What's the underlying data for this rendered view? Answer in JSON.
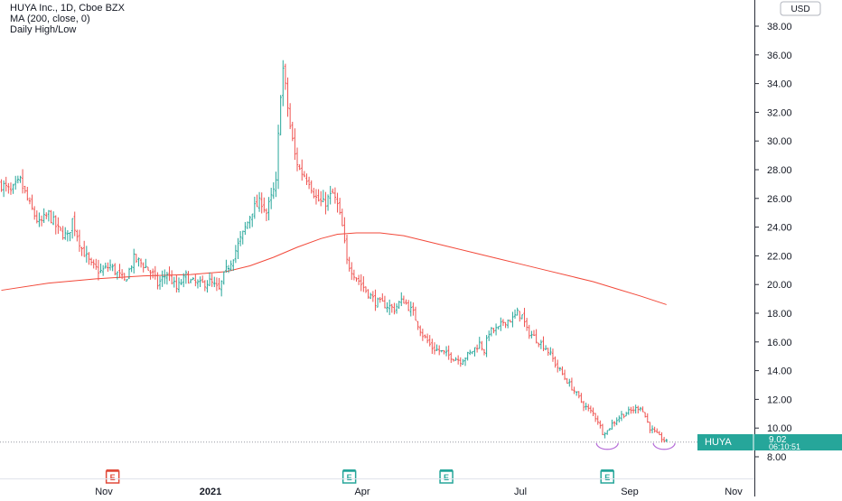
{
  "header": {
    "symbol_line": "HUYA Inc., 1D, Cboe BZX",
    "indicator_line": "MA (200, close, 0)",
    "study_line": "Daily High/Low"
  },
  "currency_button": "USD",
  "price_tag": {
    "symbol": "HUYA",
    "price": "9.02",
    "countdown": "06:10:51",
    "value": 9.02
  },
  "colors": {
    "up": "#26a69a",
    "down": "#ef5350",
    "ma": "#f2493a",
    "earnings_red": "#e04a3a",
    "earnings_green": "#26a69a",
    "marker": "#b56bd8"
  },
  "chart_data": {
    "type": "ohlc",
    "y_axis": {
      "min": 8,
      "max": 38,
      "ticks": [
        "38.00",
        "36.00",
        "34.00",
        "32.00",
        "30.00",
        "28.00",
        "26.00",
        "24.00",
        "22.00",
        "20.00",
        "18.00",
        "16.00",
        "14.00",
        "12.00",
        "10.00",
        "8.00"
      ]
    },
    "x_axis": {
      "ticks": [
        "Nov",
        "2021",
        "Apr",
        "Jul",
        "Sep",
        "Nov"
      ]
    },
    "price_path": [
      [
        0,
        27.0
      ],
      [
        4,
        26.4
      ],
      [
        8,
        27.2
      ],
      [
        12,
        25.5
      ],
      [
        16,
        24.2
      ],
      [
        20,
        24.9
      ],
      [
        24,
        23.8
      ],
      [
        28,
        23.3
      ],
      [
        30,
        24.5
      ],
      [
        34,
        22.5
      ],
      [
        38,
        21.3
      ],
      [
        42,
        20.9
      ],
      [
        46,
        21.3
      ],
      [
        50,
        20.6
      ],
      [
        52,
        20.2
      ],
      [
        56,
        21.8
      ],
      [
        60,
        21.4
      ],
      [
        64,
        20.7
      ],
      [
        66,
        20.0
      ],
      [
        70,
        20.8
      ],
      [
        74,
        19.7
      ],
      [
        78,
        20.6
      ],
      [
        80,
        20.2
      ],
      [
        84,
        20.0
      ],
      [
        88,
        20.2
      ],
      [
        92,
        19.6
      ],
      [
        94,
        20.6
      ],
      [
        98,
        22.0
      ],
      [
        102,
        23.5
      ],
      [
        106,
        25.2
      ],
      [
        110,
        25.8
      ],
      [
        112,
        25.0
      ],
      [
        116,
        27.0
      ],
      [
        118,
        33.5
      ],
      [
        119,
        35.0
      ],
      [
        122,
        31.0
      ],
      [
        124,
        29.0
      ],
      [
        126,
        28.0
      ],
      [
        130,
        27.3
      ],
      [
        133,
        26.0
      ],
      [
        136,
        25.6
      ],
      [
        140,
        26.3
      ],
      [
        142,
        25.5
      ],
      [
        144,
        24.0
      ],
      [
        146,
        21.6
      ],
      [
        150,
        20.5
      ],
      [
        154,
        19.6
      ],
      [
        158,
        18.8
      ],
      [
        162,
        18.6
      ],
      [
        166,
        18.3
      ],
      [
        168,
        18.7
      ],
      [
        170,
        18.9
      ],
      [
        174,
        18.0
      ],
      [
        178,
        16.5
      ],
      [
        182,
        15.6
      ],
      [
        186,
        15.3
      ],
      [
        190,
        15.0
      ],
      [
        194,
        14.7
      ],
      [
        198,
        15.2
      ],
      [
        202,
        15.9
      ],
      [
        204,
        15.4
      ],
      [
        206,
        16.7
      ],
      [
        210,
        16.9
      ],
      [
        212,
        17.4
      ],
      [
        214,
        17.5
      ],
      [
        216,
        17.6
      ],
      [
        218,
        18.0
      ],
      [
        220,
        17.8
      ],
      [
        222,
        16.8
      ],
      [
        226,
        16.2
      ],
      [
        230,
        15.6
      ],
      [
        232,
        15.1
      ],
      [
        234,
        14.5
      ],
      [
        238,
        13.5
      ],
      [
        242,
        12.6
      ],
      [
        246,
        11.6
      ],
      [
        250,
        11.0
      ],
      [
        252,
        10.5
      ],
      [
        254,
        9.7
      ],
      [
        256,
        9.8
      ],
      [
        258,
        10.3
      ],
      [
        262,
        10.9
      ],
      [
        266,
        11.2
      ],
      [
        270,
        11.5
      ],
      [
        272,
        10.8
      ],
      [
        274,
        10.0
      ],
      [
        278,
        9.4
      ],
      [
        281,
        9.02
      ]
    ],
    "ma_200": [
      [
        0,
        19.6
      ],
      [
        20,
        20.1
      ],
      [
        40,
        20.4
      ],
      [
        60,
        20.6
      ],
      [
        80,
        20.7
      ],
      [
        95,
        20.9
      ],
      [
        105,
        21.3
      ],
      [
        115,
        21.9
      ],
      [
        125,
        22.6
      ],
      [
        135,
        23.2
      ],
      [
        142,
        23.5
      ],
      [
        150,
        23.6
      ],
      [
        160,
        23.6
      ],
      [
        170,
        23.4
      ],
      [
        180,
        23.0
      ],
      [
        190,
        22.6
      ],
      [
        200,
        22.2
      ],
      [
        210,
        21.8
      ],
      [
        220,
        21.4
      ],
      [
        230,
        21.0
      ],
      [
        240,
        20.6
      ],
      [
        250,
        20.2
      ],
      [
        260,
        19.7
      ],
      [
        270,
        19.2
      ],
      [
        281,
        18.6
      ]
    ],
    "earnings": [
      {
        "label": "E",
        "bar": 47,
        "color": "red"
      },
      {
        "label": "E",
        "bar": 147,
        "color": "green"
      },
      {
        "label": "E",
        "bar": 188,
        "color": "green"
      },
      {
        "label": "E",
        "bar": 256,
        "color": "green"
      }
    ],
    "lows_marked": [
      {
        "bar": 256,
        "label": "L"
      },
      {
        "bar": 280,
        "label": "L"
      }
    ]
  }
}
